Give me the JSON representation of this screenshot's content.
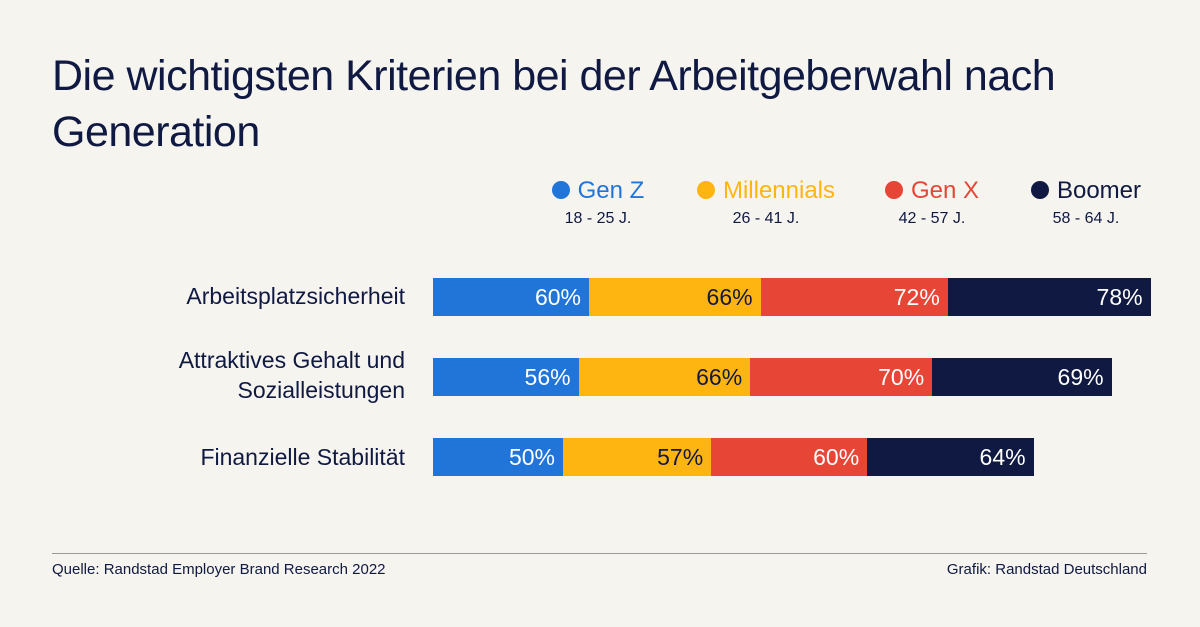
{
  "title": "Die wichtigsten Kriterien bei der Arbeitgeberwahl nach Generation",
  "colors": {
    "gen_z": "#2175d9",
    "millennials": "#ffb511",
    "gen_x": "#e74536",
    "boomer": "#0f1941"
  },
  "chart_data": {
    "type": "bar",
    "orientation": "horizontal",
    "stacked": true,
    "title": "Die wichtigsten Kriterien bei der Arbeitgeberwahl nach Generation",
    "categories": [
      "Arbeitsplatzsicherheit",
      "Attraktives Gehalt und Sozialleistungen",
      "Finanzielle Stabilität"
    ],
    "series": [
      {
        "name": "Gen Z",
        "subtitle": "18 - 25 J.",
        "color": "#2175d9",
        "values": [
          60,
          56,
          50
        ]
      },
      {
        "name": "Millennials",
        "subtitle": "26 - 41 J.",
        "color": "#ffb511",
        "values": [
          66,
          66,
          57
        ]
      },
      {
        "name": "Gen X",
        "subtitle": "42 - 57 J.",
        "color": "#e74536",
        "values": [
          72,
          70,
          60
        ]
      },
      {
        "name": "Boomer",
        "subtitle": "58 - 64 J.",
        "color": "#0f1941",
        "values": [
          78,
          69,
          64
        ]
      }
    ],
    "value_suffix": "%",
    "legend_position": "top-right",
    "grid": false
  },
  "footer": {
    "source": "Quelle: Randstad Employer Brand Research 2022",
    "credit": "Grafik: Randstad Deutschland"
  }
}
